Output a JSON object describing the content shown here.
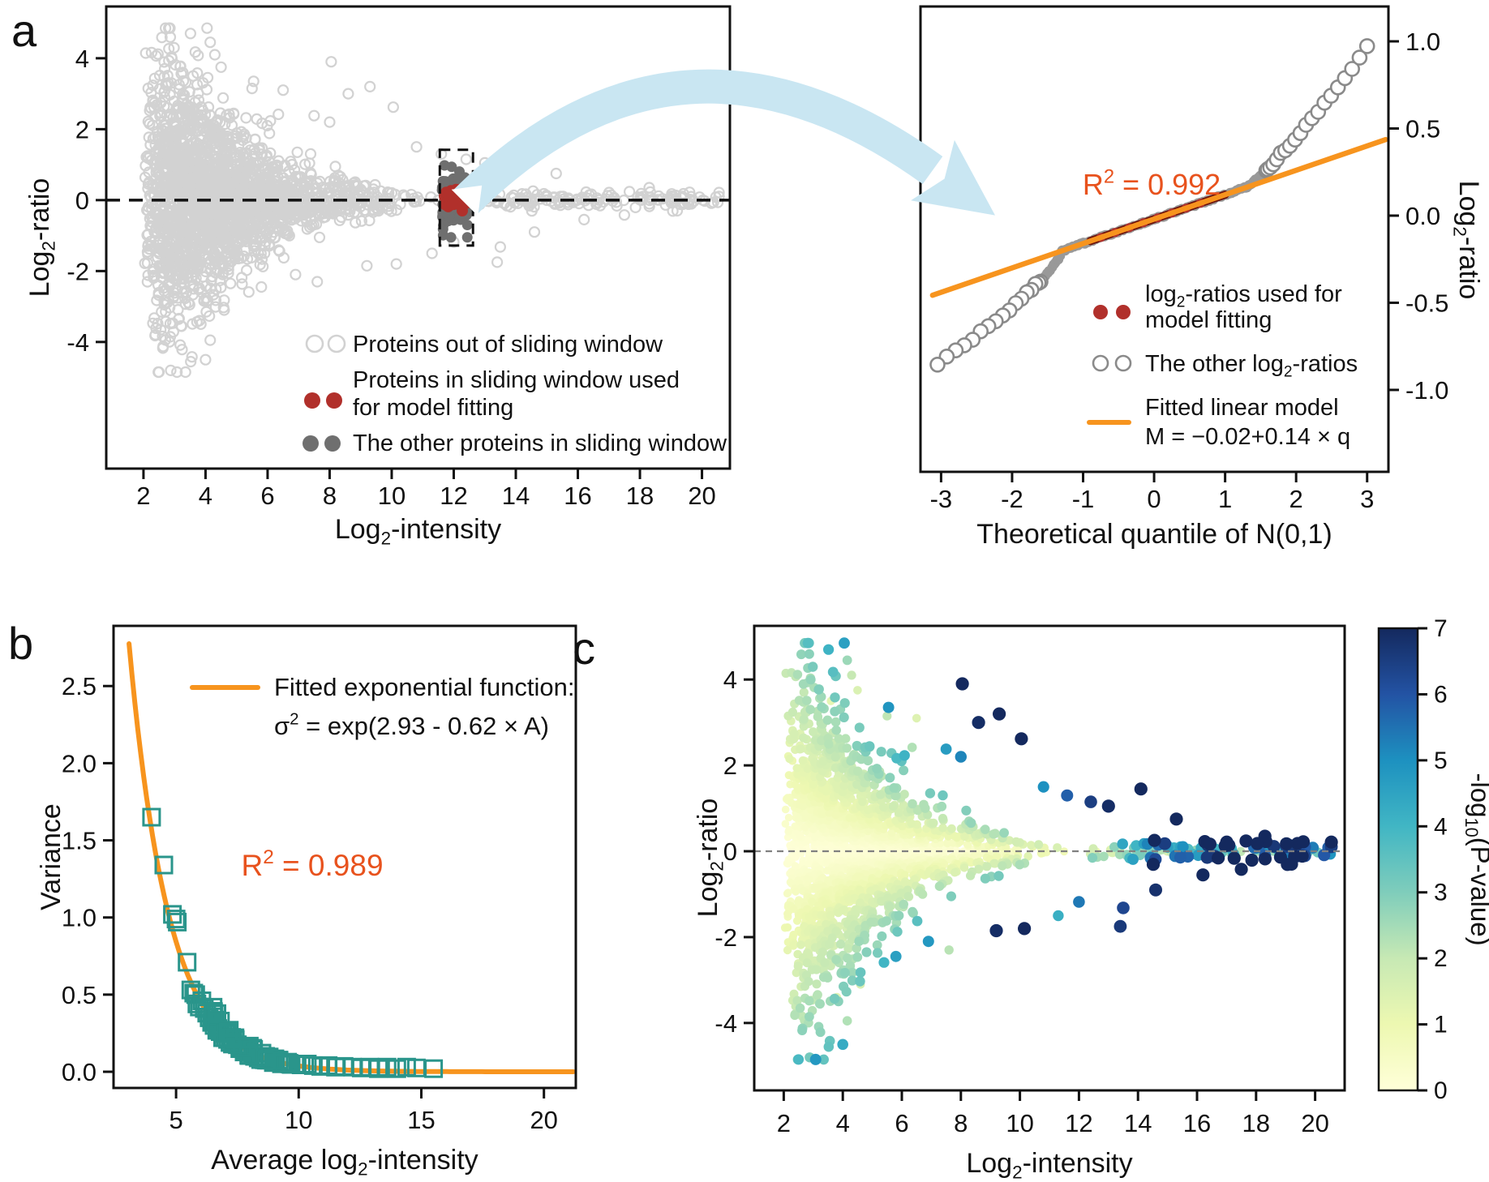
{
  "panel_letters": {
    "a": "a",
    "b": "b",
    "c": "c"
  },
  "colors": {
    "axis": "#111111",
    "cloud_gray": "#d2d2d2",
    "window_gray": "#6f6f6f",
    "red": "#b1302b",
    "dark_red": "#6d120c",
    "orange": "#f7941e",
    "annotation_orange": "#e8521d",
    "teal": "#2a958b",
    "qq_gray": "#999999",
    "qq_open": "#8a8a8a",
    "arrow_blue": "#c9e6f2",
    "c_hline": "#808080",
    "ylgnbu": [
      "#ffffd9",
      "#edf8b1",
      "#c7e9b4",
      "#7fcdbb",
      "#41b6c4",
      "#1d91c0",
      "#2353a4",
      "#14295e"
    ]
  },
  "chart_data": [
    {
      "id": "a_left",
      "type": "scatter",
      "xlabel": "Log_{2}-intensity",
      "ylabel": "Log_{2}-ratio",
      "xlim": [
        0.8,
        20.9
      ],
      "ylim": [
        -7.57,
        5.46
      ],
      "xticks": [
        2,
        4,
        6,
        8,
        10,
        12,
        14,
        16,
        18,
        20
      ],
      "yticks": [
        -4,
        -2,
        0,
        2,
        4
      ],
      "hline": 0,
      "sliding_window": {
        "x0": 11.55,
        "x1": 12.62,
        "y0": -1.28,
        "y1": 1.42
      },
      "legend": [
        {
          "marker": "open-circle",
          "color_key": "cloud_gray",
          "label": [
            "Proteins out of sliding window"
          ]
        },
        {
          "marker": "filled-circle",
          "color_key": "red",
          "label": [
            "Proteins in sliding window used",
            "for model fitting"
          ]
        },
        {
          "marker": "filled-circle",
          "color_key": "window_gray",
          "label": [
            "The other proteins in sliding window"
          ]
        }
      ],
      "cloud": {
        "seed": 7,
        "n": 2400,
        "tail_fraction": 0.06,
        "sd_model": {
          "a": 2.93,
          "b": -0.62,
          "scale": 1.06,
          "x_cap": 12.8,
          "sd_min": 0.105,
          "sd_max": 1.95
        }
      },
      "window_points": {
        "gray_n": 150,
        "red_n": 40,
        "gray_sd": 0.42,
        "red_sd": 0.15
      }
    },
    {
      "id": "a_right",
      "type": "scatter",
      "xlabel": "Theoretical quantile of N(0,1)",
      "ylabel_right": "Log_{2}-ratio",
      "xlim": [
        -3.29,
        3.3
      ],
      "ylim": [
        -1.47,
        1.2
      ],
      "xticks": [
        -3,
        -2,
        -1,
        0,
        1,
        2,
        3
      ],
      "ytick_labels": [
        "1.0",
        "0.5",
        "0.0",
        "-0.5",
        "-1.0"
      ],
      "yticks": [
        1.0,
        0.5,
        0.0,
        -0.5,
        -1.0
      ],
      "r_squared": "R^{2} = 0.992",
      "fit": {
        "intercept": -0.02,
        "slope": 0.14,
        "line_range": [
          -3.12,
          3.26
        ]
      },
      "qq": {
        "mid_n": 170,
        "mid_range": [
          -1.55,
          1.55
        ],
        "left_n": 17,
        "left_range": [
          -3.05,
          -1.6
        ],
        "right_n": 20,
        "right_range": [
          1.58,
          3.0
        ],
        "left_dev": {
          "c": 0.28,
          "p": 0.66,
          "start": 1.3
        },
        "right_dev": {
          "c": 0.295,
          "p": 1.23,
          "start": 1.3
        },
        "red_range": [
          -0.9,
          1.0
        ]
      },
      "legend": [
        {
          "marker": "filled-circle",
          "color_key": "red",
          "label": [
            "log_{2}-ratios used for",
            "model fitting"
          ]
        },
        {
          "marker": "open-circle",
          "color_key": "qq_open",
          "label": [
            "The other log_{2}-ratios"
          ]
        },
        {
          "marker": "line",
          "color_key": "orange",
          "label": [
            "Fitted linear model",
            "M = −0.02+0.14 × q"
          ]
        }
      ]
    },
    {
      "id": "b",
      "type": "scatter",
      "xlabel": "Average log_{2}-intensity",
      "ylabel": "Variance",
      "xlim": [
        2.45,
        21.3
      ],
      "ylim": [
        -0.105,
        2.89
      ],
      "xticks": [
        5,
        10,
        15,
        20
      ],
      "yticks": [
        0.0,
        0.5,
        1.0,
        1.5,
        2.0,
        2.5
      ],
      "ytick_labels": [
        "0.0",
        "0.5",
        "1.0",
        "1.5",
        "2.0",
        "2.5"
      ],
      "r_squared": "R^{2} = 0.989",
      "legend_title": "Fitted exponential function:",
      "fit": {
        "formula": "σ^{2} = exp(2.93 - 0.62 × A)",
        "a": 2.93,
        "b": -0.62,
        "curve_range": [
          3.08,
          21.2
        ]
      },
      "squares": [
        [
          4.0,
          1.65
        ],
        [
          4.5,
          1.34
        ],
        [
          4.85,
          1.02
        ],
        [
          5.0,
          0.99
        ],
        [
          5.05,
          0.97
        ],
        [
          5.45,
          0.71
        ],
        [
          5.6,
          0.53
        ],
        [
          5.72,
          0.51
        ],
        [
          5.8,
          0.5
        ],
        [
          5.85,
          0.44
        ],
        [
          5.95,
          0.42
        ],
        [
          6.05,
          0.46
        ],
        [
          6.15,
          0.41
        ],
        [
          6.25,
          0.38
        ],
        [
          6.35,
          0.35
        ],
        [
          6.45,
          0.32
        ],
        [
          6.55,
          0.3
        ],
        [
          6.6,
          0.335
        ],
        [
          6.7,
          0.28
        ],
        [
          6.8,
          0.26
        ],
        [
          6.9,
          0.25
        ],
        [
          7.0,
          0.22
        ],
        [
          7.1,
          0.21
        ],
        [
          7.2,
          0.19
        ],
        [
          7.3,
          0.2
        ],
        [
          7.4,
          0.22
        ],
        [
          7.5,
          0.175
        ],
        [
          7.6,
          0.15
        ],
        [
          7.7,
          0.16
        ],
        [
          7.8,
          0.14
        ],
        [
          7.9,
          0.13
        ],
        [
          8.0,
          0.105
        ],
        [
          8.1,
          0.12
        ],
        [
          8.2,
          0.1
        ],
        [
          8.35,
          0.09
        ],
        [
          8.5,
          0.085
        ],
        [
          8.65,
          0.1
        ],
        [
          8.8,
          0.075
        ],
        [
          9.0,
          0.065
        ],
        [
          9.2,
          0.07
        ],
        [
          9.4,
          0.06
        ],
        [
          9.6,
          0.055
        ],
        [
          9.85,
          0.05
        ],
        [
          10.1,
          0.045
        ],
        [
          10.35,
          0.05
        ],
        [
          10.6,
          0.04
        ],
        [
          10.9,
          0.035
        ],
        [
          11.2,
          0.04
        ],
        [
          11.5,
          0.03
        ],
        [
          11.85,
          0.035
        ],
        [
          12.2,
          0.03
        ],
        [
          12.55,
          0.025
        ],
        [
          12.9,
          0.03
        ],
        [
          13.25,
          0.02
        ],
        [
          13.6,
          0.03
        ],
        [
          14.0,
          0.02
        ],
        [
          14.4,
          0.03
        ],
        [
          14.8,
          0.025
        ],
        [
          15.5,
          0.02
        ]
      ],
      "extra_squares": {
        "n": 42,
        "x0": 6.3,
        "x1": 9.7,
        "seed": 11
      }
    },
    {
      "id": "c",
      "type": "scatter",
      "xlabel": "Log_{2}-intensity",
      "ylabel": "Log_{2}-ratio",
      "xlim": [
        1,
        21
      ],
      "ylim": [
        -5.57,
        5.25
      ],
      "xticks": [
        2,
        4,
        6,
        8,
        10,
        12,
        14,
        16,
        18,
        20
      ],
      "yticks": [
        -4,
        -2,
        0,
        2,
        4
      ],
      "hline": 0,
      "colorbar": {
        "label": "-log_{10}(P-value)",
        "min": 0,
        "max": 7,
        "ticks": [
          0,
          1,
          2,
          3,
          4,
          5,
          6,
          7
        ]
      },
      "cloud": {
        "seed": 7,
        "n": 2400,
        "tail_fraction": 0.06,
        "sd_model": {
          "a": 2.93,
          "b": -0.62,
          "scale": 1.06,
          "x_cap": 12.8,
          "sd_min": 0.105,
          "sd_max": 1.95
        },
        "color_model": {
          "k": 1.22,
          "x_bonus_start": 8,
          "x_bonus": 0.21,
          "pred_x_cap": 16,
          "pred_min": 0.033,
          "v_max": 7
        }
      },
      "outliers": [
        [
          4.05,
          4.85,
          4.6
        ],
        [
          4.15,
          4.45,
          2.6
        ],
        [
          4.3,
          4.1,
          2.0
        ],
        [
          3.6,
          3.5,
          1.2
        ],
        [
          4.5,
          3.75,
          1.5
        ],
        [
          5.55,
          3.35,
          4.9
        ],
        [
          5.5,
          3.15,
          2.1
        ],
        [
          6.5,
          3.1,
          1.4
        ],
        [
          8.05,
          3.9,
          7
        ],
        [
          8.6,
          3.0,
          6.9
        ],
        [
          9.3,
          3.2,
          7
        ],
        [
          10.05,
          2.62,
          7
        ],
        [
          7.5,
          2.38,
          4.7
        ],
        [
          6.35,
          2.42,
          2.3
        ],
        [
          8.0,
          2.2,
          5.2
        ],
        [
          14.1,
          1.45,
          7
        ],
        [
          4.0,
          -4.5,
          4.3
        ],
        [
          4.15,
          -3.95,
          2.3
        ],
        [
          3.8,
          -3.4,
          1.3
        ],
        [
          4.6,
          -3.1,
          1.6
        ],
        [
          5.8,
          -2.45,
          4.6
        ],
        [
          6.9,
          -2.1,
          4.8
        ],
        [
          7.6,
          -2.3,
          2.2
        ],
        [
          9.2,
          -1.85,
          6.9
        ],
        [
          10.15,
          -1.8,
          7
        ],
        [
          13.4,
          -1.75,
          6.6
        ],
        [
          13.5,
          -1.32,
          6.3
        ],
        [
          12.0,
          -1.18,
          5.4
        ],
        [
          11.3,
          -1.5,
          4.2
        ],
        [
          16.2,
          -0.55,
          7
        ],
        [
          17.5,
          -0.42,
          7
        ],
        [
          18.3,
          0.35,
          7
        ],
        [
          19.2,
          -0.3,
          7
        ],
        [
          19.6,
          0.22,
          7
        ],
        [
          15.3,
          0.75,
          7
        ],
        [
          14.6,
          -0.9,
          6.8
        ],
        [
          13.0,
          1.05,
          6.9
        ],
        [
          12.4,
          1.15,
          6.5
        ],
        [
          11.6,
          1.3,
          5.8
        ],
        [
          10.8,
          1.5,
          5.0
        ]
      ]
    }
  ]
}
